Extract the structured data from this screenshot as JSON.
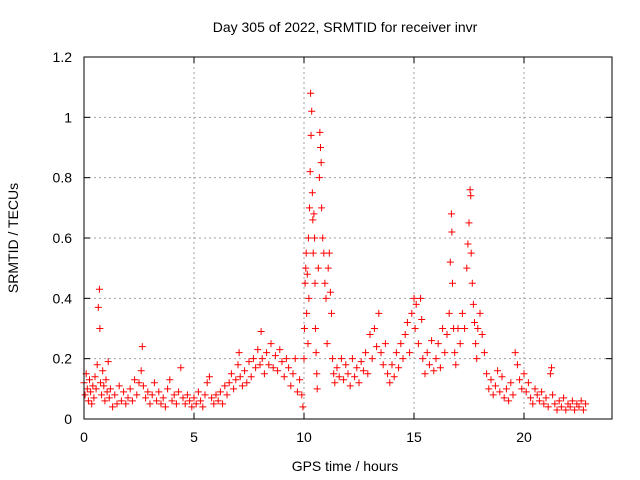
{
  "chart_data": {
    "type": "scatter",
    "title": "Day 305 of 2022, SRMTID for receiver invr",
    "xlabel": "GPS time / hours",
    "ylabel": "SRMTID / TECUs",
    "xlim": [
      0,
      24
    ],
    "ylim": [
      0,
      1.2
    ],
    "xticks": [
      "0",
      "5",
      "10",
      "15",
      "20"
    ],
    "xtick_values": [
      0,
      5,
      10,
      15,
      20
    ],
    "yticks": [
      "0",
      "0.2",
      "0.4",
      "0.6",
      "0.8",
      "1",
      "1.2"
    ],
    "ytick_values": [
      0,
      0.2,
      0.4,
      0.6,
      0.8,
      1.0,
      1.2
    ],
    "grid": true,
    "marker": "plus",
    "color": "#ff0000",
    "series": [
      {
        "name": "SRMTID",
        "points": [
          [
            0.0,
            0.12
          ],
          [
            0.05,
            0.08
          ],
          [
            0.1,
            0.15
          ],
          [
            0.15,
            0.1
          ],
          [
            0.2,
            0.06
          ],
          [
            0.25,
            0.13
          ],
          [
            0.3,
            0.09
          ],
          [
            0.35,
            0.05
          ],
          [
            0.4,
            0.11
          ],
          [
            0.45,
            0.07
          ],
          [
            0.5,
            0.14
          ],
          [
            0.55,
            0.1
          ],
          [
            0.6,
            0.18
          ],
          [
            0.65,
            0.37
          ],
          [
            0.7,
            0.43
          ],
          [
            0.72,
            0.3
          ],
          [
            0.75,
            0.12
          ],
          [
            0.8,
            0.08
          ],
          [
            0.85,
            0.16
          ],
          [
            0.9,
            0.11
          ],
          [
            0.95,
            0.06
          ],
          [
            1.0,
            0.13
          ],
          [
            1.05,
            0.09
          ],
          [
            1.1,
            0.19
          ],
          [
            1.15,
            0.07
          ],
          [
            1.2,
            0.1
          ],
          [
            1.3,
            0.04
          ],
          [
            1.4,
            0.08
          ],
          [
            1.5,
            0.05
          ],
          [
            1.6,
            0.11
          ],
          [
            1.7,
            0.06
          ],
          [
            1.8,
            0.09
          ],
          [
            1.9,
            0.05
          ],
          [
            2.0,
            0.07
          ],
          [
            2.1,
            0.1
          ],
          [
            2.2,
            0.06
          ],
          [
            2.3,
            0.13
          ],
          [
            2.4,
            0.08
          ],
          [
            2.5,
            0.12
          ],
          [
            2.6,
            0.16
          ],
          [
            2.65,
            0.24
          ],
          [
            2.7,
            0.11
          ],
          [
            2.8,
            0.07
          ],
          [
            2.9,
            0.09
          ],
          [
            3.0,
            0.05
          ],
          [
            3.1,
            0.08
          ],
          [
            3.2,
            0.12
          ],
          [
            3.3,
            0.06
          ],
          [
            3.4,
            0.09
          ],
          [
            3.5,
            0.05
          ],
          [
            3.6,
            0.07
          ],
          [
            3.7,
            0.04
          ],
          [
            3.8,
            0.1
          ],
          [
            3.9,
            0.13
          ],
          [
            4.0,
            0.06
          ],
          [
            4.1,
            0.08
          ],
          [
            4.2,
            0.05
          ],
          [
            4.3,
            0.09
          ],
          [
            4.4,
            0.17
          ],
          [
            4.5,
            0.07
          ],
          [
            4.6,
            0.05
          ],
          [
            4.7,
            0.08
          ],
          [
            4.8,
            0.06
          ],
          [
            4.9,
            0.04
          ],
          [
            5.0,
            0.07
          ],
          [
            5.1,
            0.05
          ],
          [
            5.2,
            0.09
          ],
          [
            5.3,
            0.06
          ],
          [
            5.4,
            0.04
          ],
          [
            5.5,
            0.08
          ],
          [
            5.6,
            0.12
          ],
          [
            5.7,
            0.14
          ],
          [
            5.8,
            0.07
          ],
          [
            5.9,
            0.05
          ],
          [
            6.0,
            0.08
          ],
          [
            6.1,
            0.06
          ],
          [
            6.2,
            0.09
          ],
          [
            6.3,
            0.05
          ],
          [
            6.4,
            0.11
          ],
          [
            6.5,
            0.08
          ],
          [
            6.6,
            0.12
          ],
          [
            6.7,
            0.15
          ],
          [
            6.8,
            0.1
          ],
          [
            6.9,
            0.13
          ],
          [
            7.0,
            0.18
          ],
          [
            7.05,
            0.22
          ],
          [
            7.1,
            0.14
          ],
          [
            7.2,
            0.11
          ],
          [
            7.3,
            0.16
          ],
          [
            7.4,
            0.12
          ],
          [
            7.5,
            0.19
          ],
          [
            7.6,
            0.14
          ],
          [
            7.7,
            0.2
          ],
          [
            7.8,
            0.17
          ],
          [
            7.9,
            0.23
          ],
          [
            8.0,
            0.18
          ],
          [
            8.05,
            0.29
          ],
          [
            8.1,
            0.2
          ],
          [
            8.2,
            0.15
          ],
          [
            8.3,
            0.22
          ],
          [
            8.4,
            0.18
          ],
          [
            8.5,
            0.25
          ],
          [
            8.6,
            0.17
          ],
          [
            8.7,
            0.21
          ],
          [
            8.8,
            0.16
          ],
          [
            8.9,
            0.23
          ],
          [
            9.0,
            0.19
          ],
          [
            9.1,
            0.14
          ],
          [
            9.2,
            0.2
          ],
          [
            9.3,
            0.17
          ],
          [
            9.4,
            0.11
          ],
          [
            9.5,
            0.15
          ],
          [
            9.6,
            0.2
          ],
          [
            9.7,
            0.09
          ],
          [
            9.8,
            0.13
          ],
          [
            9.9,
            0.08
          ],
          [
            9.95,
            0.04
          ],
          [
            10.0,
            0.2
          ],
          [
            10.02,
            0.3
          ],
          [
            10.05,
            0.45
          ],
          [
            10.08,
            0.5
          ],
          [
            10.1,
            0.55
          ],
          [
            10.12,
            0.35
          ],
          [
            10.15,
            0.48
          ],
          [
            10.18,
            0.25
          ],
          [
            10.2,
            0.6
          ],
          [
            10.22,
            0.4
          ],
          [
            10.25,
            0.7
          ],
          [
            10.28,
            0.82
          ],
          [
            10.3,
            1.08
          ],
          [
            10.32,
            0.94
          ],
          [
            10.35,
            1.02
          ],
          [
            10.38,
            0.75
          ],
          [
            10.4,
            0.66
          ],
          [
            10.42,
            0.55
          ],
          [
            10.45,
            0.68
          ],
          [
            10.48,
            0.6
          ],
          [
            10.5,
            0.45
          ],
          [
            10.52,
            0.3
          ],
          [
            10.55,
            0.22
          ],
          [
            10.58,
            0.15
          ],
          [
            10.6,
            0.1
          ],
          [
            10.65,
            0.5
          ],
          [
            10.7,
            0.8
          ],
          [
            10.72,
            0.95
          ],
          [
            10.75,
            0.9
          ],
          [
            10.78,
            0.85
          ],
          [
            10.8,
            0.7
          ],
          [
            10.85,
            0.6
          ],
          [
            10.9,
            0.55
          ],
          [
            10.95,
            0.45
          ],
          [
            11.0,
            0.4
          ],
          [
            11.05,
            0.25
          ],
          [
            11.1,
            0.5
          ],
          [
            11.15,
            0.55
          ],
          [
            11.2,
            0.42
          ],
          [
            11.25,
            0.35
          ],
          [
            11.3,
            0.2
          ],
          [
            11.35,
            0.15
          ],
          [
            11.4,
            0.12
          ],
          [
            11.5,
            0.17
          ],
          [
            11.6,
            0.14
          ],
          [
            11.7,
            0.2
          ],
          [
            11.8,
            0.13
          ],
          [
            11.9,
            0.18
          ],
          [
            12.0,
            0.15
          ],
          [
            12.1,
            0.11
          ],
          [
            12.2,
            0.2
          ],
          [
            12.3,
            0.14
          ],
          [
            12.4,
            0.17
          ],
          [
            12.5,
            0.12
          ],
          [
            12.6,
            0.19
          ],
          [
            12.7,
            0.16
          ],
          [
            12.8,
            0.22
          ],
          [
            12.9,
            0.15
          ],
          [
            13.0,
            0.28
          ],
          [
            13.1,
            0.2
          ],
          [
            13.2,
            0.3
          ],
          [
            13.3,
            0.24
          ],
          [
            13.4,
            0.35
          ],
          [
            13.5,
            0.22
          ],
          [
            13.6,
            0.18
          ],
          [
            13.7,
            0.25
          ],
          [
            13.8,
            0.15
          ],
          [
            13.9,
            0.12
          ],
          [
            14.0,
            0.18
          ],
          [
            14.1,
            0.14
          ],
          [
            14.2,
            0.22
          ],
          [
            14.3,
            0.17
          ],
          [
            14.4,
            0.25
          ],
          [
            14.5,
            0.2
          ],
          [
            14.6,
            0.28
          ],
          [
            14.7,
            0.32
          ],
          [
            14.8,
            0.22
          ],
          [
            14.9,
            0.35
          ],
          [
            15.0,
            0.4
          ],
          [
            15.05,
            0.3
          ],
          [
            15.1,
            0.38
          ],
          [
            15.2,
            0.25
          ],
          [
            15.3,
            0.4
          ],
          [
            15.35,
            0.33
          ],
          [
            15.4,
            0.2
          ],
          [
            15.5,
            0.15
          ],
          [
            15.6,
            0.22
          ],
          [
            15.7,
            0.18
          ],
          [
            15.8,
            0.26
          ],
          [
            15.9,
            0.16
          ],
          [
            16.0,
            0.2
          ],
          [
            16.1,
            0.25
          ],
          [
            16.2,
            0.17
          ],
          [
            16.3,
            0.3
          ],
          [
            16.4,
            0.22
          ],
          [
            16.5,
            0.28
          ],
          [
            16.6,
            0.35
          ],
          [
            16.65,
            0.52
          ],
          [
            16.7,
            0.68
          ],
          [
            16.72,
            0.62
          ],
          [
            16.75,
            0.45
          ],
          [
            16.8,
            0.3
          ],
          [
            16.85,
            0.22
          ],
          [
            16.9,
            0.18
          ],
          [
            17.0,
            0.3
          ],
          [
            17.1,
            0.25
          ],
          [
            17.2,
            0.35
          ],
          [
            17.3,
            0.3
          ],
          [
            17.4,
            0.5
          ],
          [
            17.45,
            0.58
          ],
          [
            17.5,
            0.65
          ],
          [
            17.55,
            0.76
          ],
          [
            17.58,
            0.74
          ],
          [
            17.6,
            0.55
          ],
          [
            17.65,
            0.45
          ],
          [
            17.7,
            0.38
          ],
          [
            17.75,
            0.32
          ],
          [
            17.8,
            0.25
          ],
          [
            17.85,
            0.2
          ],
          [
            17.9,
            0.3
          ],
          [
            18.0,
            0.35
          ],
          [
            18.1,
            0.28
          ],
          [
            18.2,
            0.22
          ],
          [
            18.3,
            0.15
          ],
          [
            18.4,
            0.1
          ],
          [
            18.5,
            0.13
          ],
          [
            18.6,
            0.08
          ],
          [
            18.7,
            0.11
          ],
          [
            18.8,
            0.16
          ],
          [
            18.9,
            0.09
          ],
          [
            19.0,
            0.14
          ],
          [
            19.1,
            0.07
          ],
          [
            19.2,
            0.1
          ],
          [
            19.3,
            0.06
          ],
          [
            19.4,
            0.12
          ],
          [
            19.5,
            0.08
          ],
          [
            19.6,
            0.22
          ],
          [
            19.7,
            0.18
          ],
          [
            19.8,
            0.13
          ],
          [
            19.9,
            0.1
          ],
          [
            20.0,
            0.15
          ],
          [
            20.1,
            0.09
          ],
          [
            20.2,
            0.12
          ],
          [
            20.3,
            0.07
          ],
          [
            20.4,
            0.05
          ],
          [
            20.5,
            0.1
          ],
          [
            20.6,
            0.08
          ],
          [
            20.7,
            0.06
          ],
          [
            20.8,
            0.09
          ],
          [
            20.9,
            0.05
          ],
          [
            21.0,
            0.07
          ],
          [
            21.1,
            0.04
          ],
          [
            21.2,
            0.15
          ],
          [
            21.25,
            0.17
          ],
          [
            21.3,
            0.08
          ],
          [
            21.4,
            0.05
          ],
          [
            21.5,
            0.03
          ],
          [
            21.6,
            0.06
          ],
          [
            21.7,
            0.04
          ],
          [
            21.8,
            0.07
          ],
          [
            21.9,
            0.03
          ],
          [
            22.0,
            0.05
          ],
          [
            22.1,
            0.04
          ],
          [
            22.2,
            0.06
          ],
          [
            22.3,
            0.03
          ],
          [
            22.4,
            0.05
          ],
          [
            22.5,
            0.04
          ],
          [
            22.6,
            0.06
          ],
          [
            22.7,
            0.03
          ],
          [
            22.8,
            0.05
          ]
        ]
      }
    ]
  }
}
